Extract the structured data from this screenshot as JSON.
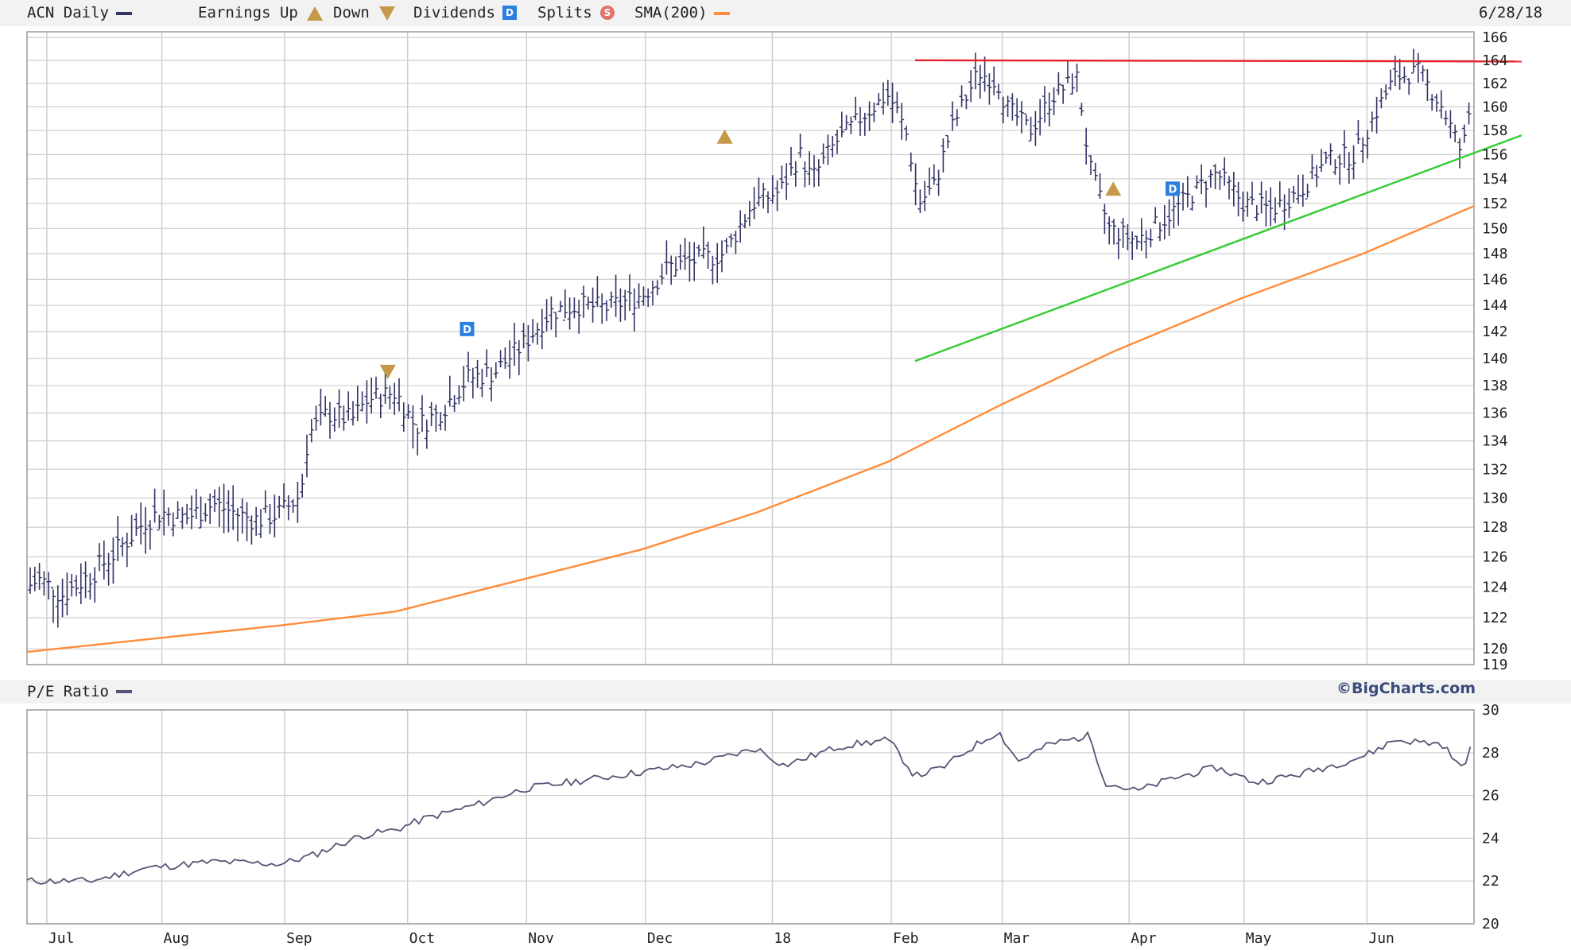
{
  "header": {
    "symbol_label": "ACN Daily",
    "earnings_label": "Earnings Up",
    "down_label": "Down",
    "dividends_label": "Dividends",
    "splits_label": "Splits",
    "sma_label": "SMA(200)",
    "date": "6/28/18"
  },
  "pe_panel": {
    "label": "P/E Ratio",
    "brand": "©BigCharts.com"
  },
  "colors": {
    "price": "#333366",
    "sma": "#ff8c3a",
    "resistance": "#e8202a",
    "support": "#33cc33",
    "pe": "#555577",
    "grid": "#cfcfcf",
    "marker": "#c49a4a",
    "dividend": "#2b7fe0",
    "split": "#e0746b"
  },
  "chart_data": [
    {
      "type": "ohlc",
      "title": "ACN Daily",
      "series": [
        {
          "name": "ACN Daily",
          "kind": "price_bars",
          "points": [
            [
              "2017-06-28",
              124.0
            ],
            [
              "2017-07-01",
              124.5
            ],
            [
              "2017-07-07",
              123.5
            ],
            [
              "2017-07-14",
              124.8
            ],
            [
              "2017-07-21",
              126.5
            ],
            [
              "2017-07-28",
              128.5
            ],
            [
              "2017-08-01",
              129.0
            ],
            [
              "2017-08-07",
              128.6
            ],
            [
              "2017-08-14",
              129.6
            ],
            [
              "2017-08-21",
              128.8
            ],
            [
              "2017-08-25",
              128.5
            ],
            [
              "2017-08-31",
              129.0
            ],
            [
              "2017-09-05",
              130.2
            ],
            [
              "2017-09-07",
              134.5
            ],
            [
              "2017-09-12",
              136.0
            ],
            [
              "2017-09-18",
              135.5
            ],
            [
              "2017-09-22",
              137.0
            ],
            [
              "2017-09-29",
              137.5
            ],
            [
              "2017-10-04",
              135.0
            ],
            [
              "2017-10-10",
              136.0
            ],
            [
              "2017-10-17",
              138.5
            ],
            [
              "2017-10-24",
              139.0
            ],
            [
              "2017-10-31",
              141.0
            ],
            [
              "2017-11-07",
              143.5
            ],
            [
              "2017-11-14",
              144.0
            ],
            [
              "2017-11-21",
              143.8
            ],
            [
              "2017-11-28",
              144.5
            ],
            [
              "2017-12-01",
              145.0
            ],
            [
              "2017-12-07",
              147.0
            ],
            [
              "2017-12-14",
              147.5
            ],
            [
              "2017-12-21",
              148.0
            ],
            [
              "2017-12-28",
              152.0
            ],
            [
              "2018-01-04",
              153.0
            ],
            [
              "2018-01-09",
              156.0
            ],
            [
              "2018-01-12",
              154.0
            ],
            [
              "2018-01-18",
              157.0
            ],
            [
              "2018-01-24",
              159.0
            ],
            [
              "2018-01-31",
              161.0
            ],
            [
              "2018-02-02",
              160.0
            ],
            [
              "2018-02-05",
              157.5
            ],
            [
              "2018-02-08",
              152.0
            ],
            [
              "2018-02-12",
              153.5
            ],
            [
              "2018-02-16",
              158.0
            ],
            [
              "2018-02-23",
              163.0
            ],
            [
              "2018-02-28",
              162.0
            ],
            [
              "2018-03-02",
              160.0
            ],
            [
              "2018-03-08",
              158.0
            ],
            [
              "2018-03-14",
              161.0
            ],
            [
              "2018-03-20",
              162.5
            ],
            [
              "2018-03-23",
              155.0
            ],
            [
              "2018-03-28",
              150.0
            ],
            [
              "2018-04-04",
              149.0
            ],
            [
              "2018-04-10",
              150.5
            ],
            [
              "2018-04-17",
              152.5
            ],
            [
              "2018-04-24",
              154.5
            ],
            [
              "2018-05-01",
              152.0
            ],
            [
              "2018-05-08",
              151.5
            ],
            [
              "2018-05-15",
              153.0
            ],
            [
              "2018-05-22",
              155.5
            ],
            [
              "2018-05-29",
              156.0
            ],
            [
              "2018-06-04",
              160.0
            ],
            [
              "2018-06-08",
              162.5
            ],
            [
              "2018-06-14",
              163.0
            ],
            [
              "2018-06-20",
              160.0
            ],
            [
              "2018-06-25",
              156.0
            ],
            [
              "2018-06-28",
              162.0
            ]
          ]
        },
        {
          "name": "SMA(200)",
          "kind": "line",
          "points": [
            [
              "2017-06-28",
              119.8
            ],
            [
              "2017-07-28",
              120.6
            ],
            [
              "2017-08-31",
              121.5
            ],
            [
              "2017-09-29",
              122.4
            ],
            [
              "2017-10-31",
              124.5
            ],
            [
              "2017-11-30",
              126.5
            ],
            [
              "2017-12-29",
              129.0
            ],
            [
              "2018-01-31",
              132.5
            ],
            [
              "2018-02-28",
              136.5
            ],
            [
              "2018-03-29",
              140.5
            ],
            [
              "2018-04-30",
              144.5
            ],
            [
              "2018-05-31",
              148.0
            ],
            [
              "2018-06-28",
              151.8
            ]
          ]
        }
      ],
      "annotations": [
        {
          "kind": "resistance",
          "from": [
            "2018-02-07",
            164.0
          ],
          "to": [
            "2018-07-10",
            163.9
          ]
        },
        {
          "kind": "support",
          "from": [
            "2018-02-07",
            139.8
          ],
          "to": [
            "2018-07-10",
            157.6
          ]
        },
        {
          "kind": "earnings_down",
          "x": "2017-09-27",
          "y": 139.0
        },
        {
          "kind": "earnings_up",
          "x": "2017-12-21",
          "y": 157.5
        },
        {
          "kind": "earnings_up",
          "x": "2018-03-29",
          "y": 153.2
        },
        {
          "kind": "dividend",
          "x": "2017-10-17",
          "y": 142.2
        },
        {
          "kind": "dividend",
          "x": "2018-04-13",
          "y": 153.2
        }
      ],
      "y_ticks": [
        "166",
        "164",
        "162",
        "160",
        "158",
        "156",
        "154",
        "152",
        "150",
        "148",
        "146",
        "144",
        "142",
        "140",
        "138",
        "136",
        "134",
        "132",
        "130",
        "128",
        "126",
        "124",
        "122",
        "120",
        "119"
      ],
      "x_ticks": [
        "Jul",
        "Aug",
        "Sep",
        "Oct",
        "Nov",
        "Dec",
        "18",
        "Feb",
        "Mar",
        "Apr",
        "May",
        "Jun"
      ],
      "ylim": [
        119,
        166.5
      ],
      "yscale": "log",
      "grid": true
    },
    {
      "type": "line",
      "title": "P/E Ratio",
      "series": [
        {
          "name": "P/E Ratio",
          "points": [
            [
              "2017-06-28",
              22.0
            ],
            [
              "2017-07-14",
              22.0
            ],
            [
              "2017-07-28",
              22.6
            ],
            [
              "2017-08-14",
              22.9
            ],
            [
              "2017-08-31",
              22.8
            ],
            [
              "2017-09-08",
              23.2
            ],
            [
              "2017-09-20",
              24.1
            ],
            [
              "2017-09-29",
              24.4
            ],
            [
              "2017-10-06",
              24.9
            ],
            [
              "2017-10-20",
              25.6
            ],
            [
              "2017-10-31",
              26.3
            ],
            [
              "2017-11-15",
              26.7
            ],
            [
              "2017-11-30",
              27.1
            ],
            [
              "2017-12-15",
              27.5
            ],
            [
              "2017-12-29",
              28.2
            ],
            [
              "2018-01-05",
              27.4
            ],
            [
              "2018-01-19",
              28.3
            ],
            [
              "2018-01-31",
              28.6
            ],
            [
              "2018-02-02",
              28.2
            ],
            [
              "2018-02-07",
              26.9
            ],
            [
              "2018-02-14",
              27.3
            ],
            [
              "2018-02-21",
              28.2
            ],
            [
              "2018-02-28",
              29.0
            ],
            [
              "2018-03-05",
              27.6
            ],
            [
              "2018-03-13",
              28.4
            ],
            [
              "2018-03-23",
              28.8
            ],
            [
              "2018-03-27",
              26.6
            ],
            [
              "2018-04-04",
              26.2
            ],
            [
              "2018-04-13",
              26.8
            ],
            [
              "2018-04-24",
              27.3
            ],
            [
              "2018-05-04",
              26.6
            ],
            [
              "2018-05-15",
              27.0
            ],
            [
              "2018-05-25",
              27.5
            ],
            [
              "2018-06-01",
              27.9
            ],
            [
              "2018-06-08",
              28.6
            ],
            [
              "2018-06-20",
              28.4
            ],
            [
              "2018-06-25",
              27.2
            ],
            [
              "2018-06-28",
              28.7
            ]
          ]
        }
      ],
      "y_ticks": [
        "30",
        "28",
        "26",
        "24",
        "22",
        "20"
      ],
      "ylim": [
        20,
        30
      ],
      "grid": true
    }
  ]
}
